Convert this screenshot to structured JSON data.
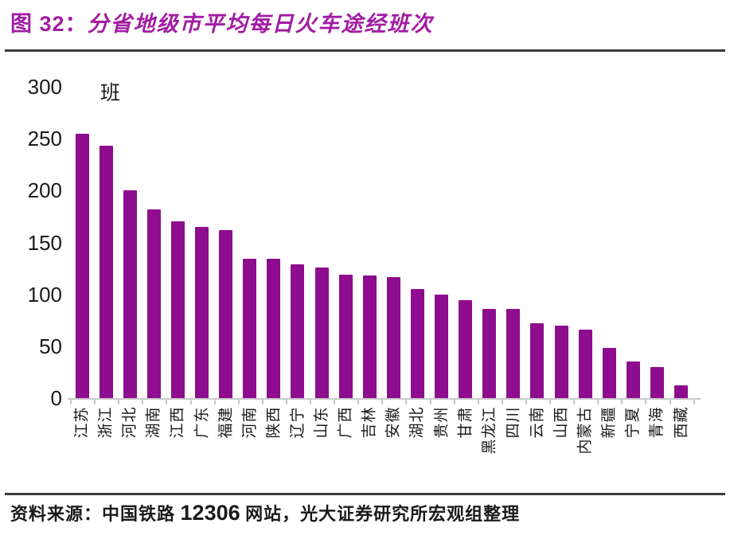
{
  "header": {
    "figure_label": "图 32：",
    "title": "分省地级市平均每日火车途经班次"
  },
  "chart_data": {
    "type": "bar",
    "title": "分省地级市平均每日火车途经班次",
    "unit_label": "班",
    "categories": [
      "江苏",
      "浙江",
      "河北",
      "湖南",
      "江西",
      "广东",
      "福建",
      "河南",
      "陕西",
      "辽宁",
      "山东",
      "广西",
      "吉林",
      "安徽",
      "湖北",
      "贵州",
      "甘肃",
      "黑龙江",
      "四川",
      "云南",
      "山西",
      "内蒙古",
      "新疆",
      "宁夏",
      "青海",
      "西藏"
    ],
    "values": [
      255,
      243,
      200,
      182,
      170,
      165,
      162,
      134,
      134,
      129,
      126,
      119,
      118,
      117,
      105,
      100,
      94,
      86,
      86,
      72,
      70,
      66,
      48,
      35,
      30,
      12
    ],
    "xlabel": "",
    "ylabel": "班",
    "ylim": [
      0,
      300
    ],
    "yticks": [
      0,
      50,
      100,
      150,
      200,
      250,
      300
    ],
    "grid": false,
    "legend": "none",
    "bar_color": "#8E0D8E",
    "x_label_rotation_deg": -90
  },
  "source": {
    "prefix": "资料来源：",
    "body_before": "中国铁路 ",
    "number": "12306",
    "body_after": " 网站，光大证券研究所宏观组整理"
  },
  "colors": {
    "accent_title": "#A21CA2",
    "bar": "#8E0D8E",
    "axis_line": "#C9C9C9",
    "rule": "#3A3A3A",
    "text": "#1A1A1A",
    "background": "#FFFFFF"
  }
}
